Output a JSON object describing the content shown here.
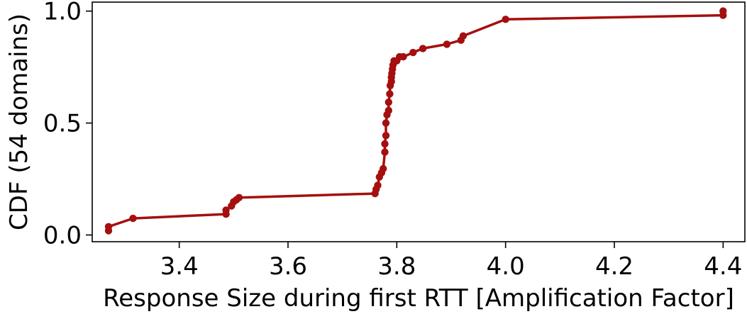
{
  "chart_data": {
    "type": "line",
    "title": "",
    "xlabel": "Response Size during first RTT [Amplification Factor]",
    "ylabel": "CDF (54 domains)",
    "xlim": [
      3.24,
      4.44
    ],
    "ylim": [
      -0.03,
      1.04
    ],
    "xticks": [
      3.4,
      3.6,
      3.8,
      4.0,
      4.2,
      4.4
    ],
    "xtick_labels": [
      "3.4",
      "3.6",
      "3.8",
      "4.0",
      "4.2",
      "4.4"
    ],
    "yticks": [
      0.0,
      0.5,
      1.0
    ],
    "ytick_labels": [
      "0.0",
      "0.5",
      "1.0"
    ],
    "grid": false,
    "legend": "none",
    "series": [
      {
        "color": "#a50f0f",
        "marker": "circle",
        "x": [
          3.27,
          3.27,
          3.315,
          3.486,
          3.486,
          3.496,
          3.5,
          3.505,
          3.51,
          3.76,
          3.762,
          3.765,
          3.768,
          3.772,
          3.775,
          3.778,
          3.778,
          3.78,
          3.78,
          3.782,
          3.785,
          3.785,
          3.787,
          3.788,
          3.79,
          3.79,
          3.791,
          3.792,
          3.793,
          3.795,
          3.8,
          3.805,
          3.812,
          3.83,
          3.848,
          3.892,
          3.918,
          3.922,
          4.0,
          4.4,
          4.4
        ],
        "y": [
          0.019,
          0.037,
          0.074,
          0.093,
          0.111,
          0.13,
          0.148,
          0.157,
          0.167,
          0.185,
          0.204,
          0.222,
          0.259,
          0.278,
          0.296,
          0.37,
          0.407,
          0.444,
          0.5,
          0.537,
          0.556,
          0.593,
          0.63,
          0.667,
          0.685,
          0.704,
          0.722,
          0.741,
          0.759,
          0.778,
          0.778,
          0.796,
          0.796,
          0.815,
          0.833,
          0.852,
          0.87,
          0.889,
          0.963,
          0.981,
          1.0
        ]
      }
    ]
  }
}
